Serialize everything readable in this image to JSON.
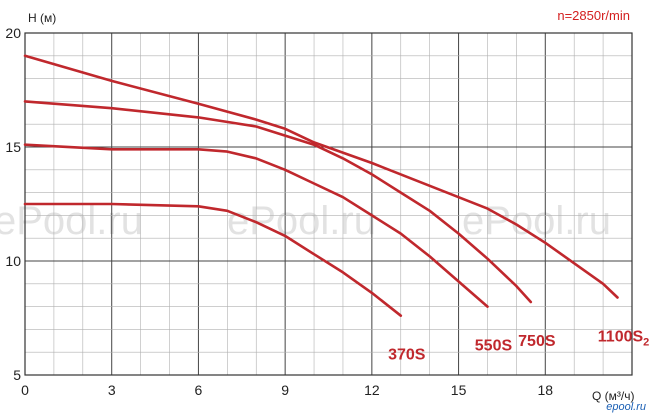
{
  "chart_data": {
    "type": "line",
    "xlabel": "Q (м³/ч)",
    "ylabel": "H (м)",
    "annotation": "n=2850r/min",
    "xlim": [
      0,
      21
    ],
    "ylim": [
      5,
      20
    ],
    "xticks": [
      "0",
      "3",
      "6",
      "9",
      "12",
      "15",
      "18"
    ],
    "yticks": [
      "5",
      "10",
      "15",
      "20"
    ],
    "grid": true,
    "colors": {
      "series": "#c0282d",
      "annotation": "#d42020",
      "grid": "#b0b0b0",
      "major_grid": "#444444"
    },
    "series": [
      {
        "name": "370S",
        "name_sub": "",
        "x": [
          0,
          3,
          6,
          7,
          8,
          9,
          10,
          11,
          12,
          13
        ],
        "y": [
          12.5,
          12.5,
          12.4,
          12.2,
          11.7,
          11.1,
          10.3,
          9.5,
          8.6,
          7.6
        ]
      },
      {
        "name": "550S",
        "name_sub": "",
        "x": [
          0,
          3,
          6,
          7,
          8,
          9,
          10,
          11,
          12,
          13,
          14,
          15,
          16
        ],
        "y": [
          15.1,
          14.9,
          14.9,
          14.8,
          14.5,
          14.0,
          13.4,
          12.8,
          12.0,
          11.2,
          10.2,
          9.1,
          8.0
        ]
      },
      {
        "name": "750S",
        "name_sub": "",
        "x": [
          0,
          3,
          6,
          8,
          9,
          10,
          11,
          12,
          13,
          14,
          15,
          16,
          17,
          17.5
        ],
        "y": [
          17.0,
          16.7,
          16.3,
          15.9,
          15.5,
          15.1,
          14.5,
          13.8,
          13.0,
          12.2,
          11.2,
          10.1,
          8.9,
          8.2
        ]
      },
      {
        "name": "1100S",
        "name_sub": "2",
        "x": [
          0,
          3,
          6,
          8,
          9,
          10,
          12,
          14,
          16,
          17,
          18,
          19,
          20,
          20.5
        ],
        "y": [
          19.0,
          17.9,
          16.9,
          16.2,
          15.8,
          15.2,
          14.3,
          13.3,
          12.3,
          11.6,
          10.8,
          9.9,
          9.0,
          8.4
        ]
      }
    ]
  },
  "watermarks": [
    "ePool.ru",
    "ePool.ru",
    "ePool.ru"
  ],
  "brand": "epool.ru"
}
